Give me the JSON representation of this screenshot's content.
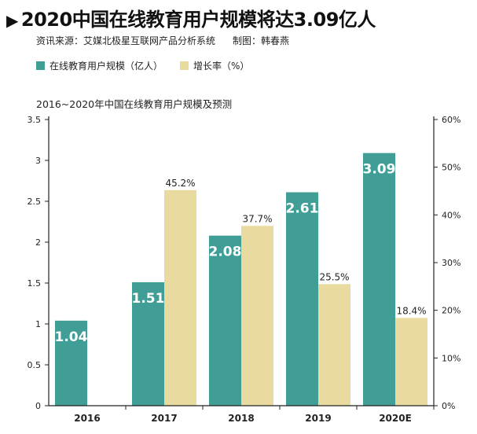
{
  "title": "2020中国在线教育用户规模将达3.09亿人",
  "source": "资讯来源：艾媒北极星互联网产品分析系统",
  "author": "制图：韩春燕",
  "colors": {
    "users": "#409e96",
    "growth": "#e9dba0"
  },
  "chart_data": {
    "type": "bar",
    "subtitle": "2016~2020年中国在线教育用户规模及预测",
    "categories": [
      "2016",
      "2017",
      "2018",
      "2019",
      "2020E"
    ],
    "series": [
      {
        "name": "在线教育用户规模（亿人）",
        "axis": "left",
        "values": [
          1.04,
          1.51,
          2.08,
          2.61,
          3.09
        ],
        "labels": [
          "1.04",
          "1.51",
          "2.08",
          "2.61",
          "3.09"
        ]
      },
      {
        "name": "增长率（%）",
        "axis": "right",
        "values": [
          null,
          45.2,
          37.7,
          25.5,
          18.4
        ],
        "labels": [
          "",
          "45.2%",
          "37.7%",
          "25.5%",
          "18.4%"
        ]
      }
    ],
    "y_left": {
      "ylim": [
        0,
        3.5
      ],
      "ticks": [
        "0",
        "0.5",
        "1",
        "1.5",
        "2",
        "2.5",
        "3",
        "3.5"
      ]
    },
    "y_right": {
      "ylim": [
        0,
        60
      ],
      "ticks": [
        "0%",
        "10%",
        "20%",
        "30%",
        "40%",
        "50%",
        "60%"
      ]
    },
    "grid": false,
    "legend_position": "top-left"
  }
}
